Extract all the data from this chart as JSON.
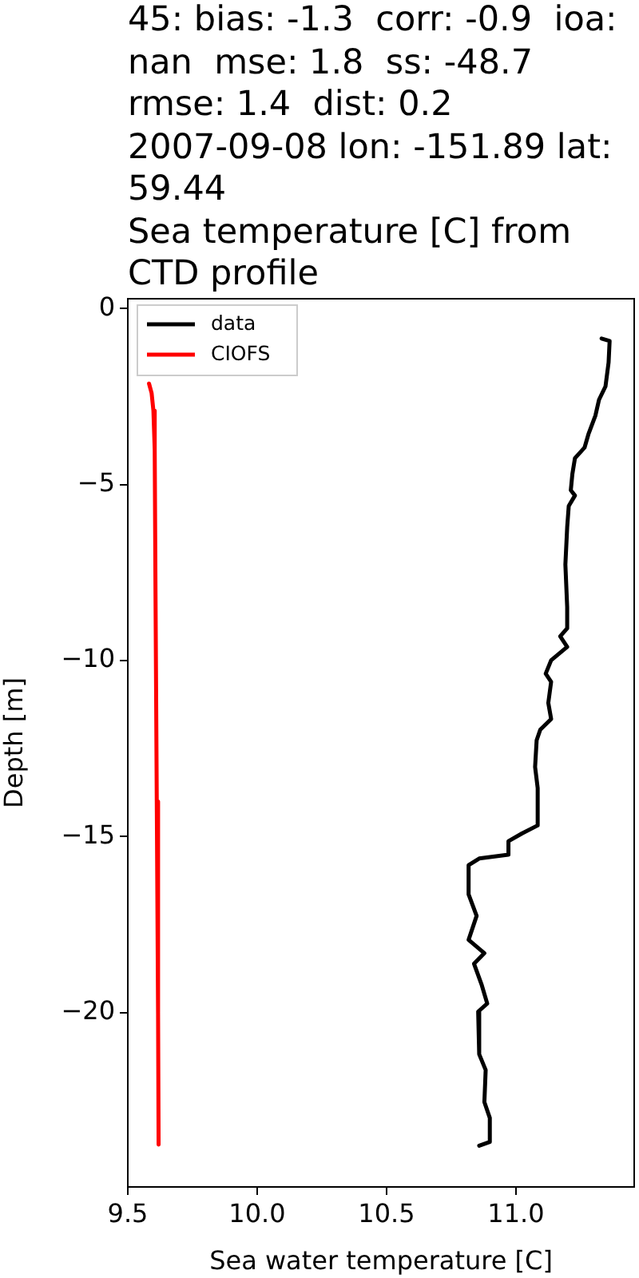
{
  "chart_data": {
    "type": "line",
    "title": "45: bias: -1.3  corr: -0.9  ioa:\nnan  mse: 1.8  ss: -48.7\nrmse: 1.4  dist: 0.2\n2007-09-08 lon: -151.89 lat:\n59.44\nSea temperature [C] from\nCTD profile",
    "xlabel": "Sea water temperature [C]",
    "ylabel": "Depth [m]",
    "series": [
      {
        "name": "data",
        "color": "#000000",
        "x": [
          11.331,
          11.362,
          11.358,
          11.346,
          11.321,
          11.307,
          11.28,
          11.265,
          11.228,
          11.218,
          11.212,
          11.228,
          11.204,
          11.198,
          11.191,
          11.198,
          11.198,
          11.171,
          11.198,
          11.136,
          11.115,
          11.136,
          11.125,
          11.136,
          11.094,
          11.08,
          11.074,
          11.084,
          11.084,
          11.023,
          10.971,
          10.971,
          10.858,
          10.817,
          10.817,
          10.848,
          10.817,
          10.878,
          10.838,
          10.868,
          10.889,
          10.854,
          10.858,
          10.883,
          10.878,
          10.899,
          10.899,
          10.858
        ],
        "values": [
          -0.85,
          -0.92,
          -1.53,
          -2.21,
          -2.59,
          -3.04,
          -3.57,
          -3.95,
          -4.25,
          -4.7,
          -5.16,
          -5.31,
          -5.61,
          -6.21,
          -7.27,
          -8.48,
          -9.08,
          -9.31,
          -9.61,
          -9.99,
          -10.37,
          -10.6,
          -11.2,
          -11.66,
          -11.96,
          -12.26,
          -13.02,
          -13.62,
          -14.68,
          -14.91,
          -15.13,
          -15.51,
          -15.62,
          -15.81,
          -16.64,
          -17.25,
          -17.93,
          -18.31,
          -18.61,
          -19.22,
          -19.74,
          -19.97,
          -21.18,
          -21.63,
          -22.54,
          -22.99,
          -23.67,
          -23.78
        ]
      },
      {
        "name": "CIOFS",
        "color": "#ff0000",
        "x": [
          9.582,
          9.592,
          9.599,
          9.604,
          9.607,
          9.612,
          9.617,
          9.619
        ],
        "values": [
          -2.13,
          -2.4,
          -2.9,
          -4,
          -8,
          -14,
          -20,
          -23.75
        ]
      }
    ],
    "xlim": [
      9.5,
      11.457
    ],
    "ylim": [
      -24.95,
      0.28
    ],
    "xticks": [
      {
        "value": 9.5,
        "label": "9.5"
      },
      {
        "value": 10,
        "label": "10.0"
      },
      {
        "value": 10.5,
        "label": "10.5"
      },
      {
        "value": 11,
        "label": "11.0"
      }
    ],
    "yticks": [
      {
        "value": -20,
        "label": "−20"
      },
      {
        "value": -15,
        "label": "−15"
      },
      {
        "value": -10,
        "label": "−10"
      },
      {
        "value": -5,
        "label": "−5"
      },
      {
        "value": 0,
        "label": "0"
      }
    ],
    "legend": "top left",
    "marker": "none",
    "line_style": "solid",
    "grid": false
  }
}
